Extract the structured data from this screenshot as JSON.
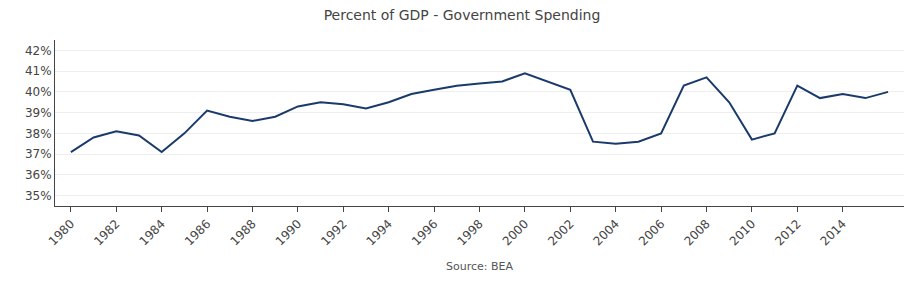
{
  "chart_data": {
    "type": "line",
    "title": "Percent of GDP - Government Spending",
    "annotations": [
      "Source: BEA"
    ],
    "x": [
      1980,
      1981,
      1982,
      1983,
      1984,
      1985,
      1986,
      1987,
      1988,
      1989,
      1990,
      1991,
      1992,
      1993,
      1994,
      1995,
      1996,
      1997,
      1998,
      1999,
      2000,
      2001,
      2002,
      2003,
      2004,
      2005,
      2006,
      2007,
      2008,
      2009,
      2010,
      2011,
      2012,
      2013,
      2014,
      2015,
      2016
    ],
    "values": [
      37.1,
      37.8,
      38.1,
      37.9,
      37.1,
      38.0,
      39.1,
      38.8,
      38.6,
      38.8,
      39.3,
      39.5,
      39.4,
      39.2,
      39.5,
      39.9,
      40.1,
      40.3,
      40.4,
      40.5,
      40.9,
      40.5,
      40.1,
      37.6,
      37.5,
      37.6,
      38.0,
      40.3,
      40.7,
      39.5,
      37.7,
      38.0,
      40.3,
      39.7,
      39.9,
      39.7,
      40.0
    ],
    "color": "#1a3a6b",
    "xlim": [
      1979.3,
      2016.7
    ],
    "xticks": [
      1980,
      1982,
      1984,
      1986,
      1988,
      1990,
      1992,
      1994,
      1996,
      1998,
      2000,
      2002,
      2004,
      2006,
      2008,
      2010,
      2012,
      2014
    ],
    "ylim": [
      34.5,
      42.5
    ],
    "yticks": [
      {
        "value": 35,
        "label": "35%"
      },
      {
        "value": 36,
        "label": "36%"
      },
      {
        "value": 37,
        "label": "37%"
      },
      {
        "value": 38,
        "label": "38%"
      },
      {
        "value": 39,
        "label": "39%"
      },
      {
        "value": 40,
        "label": "40%"
      },
      {
        "value": 41,
        "label": "41%"
      },
      {
        "value": 42,
        "label": "42%"
      }
    ],
    "grid": true
  }
}
